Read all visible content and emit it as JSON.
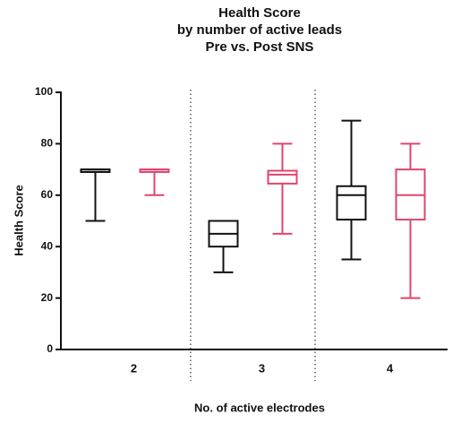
{
  "chart_data": {
    "type": "box",
    "title": [
      "Health Score",
      "by number of active leads",
      "Pre vs.  Post SNS"
    ],
    "y_label": "Health Score",
    "x_label": "No. of active electrodes",
    "categories": [
      "2",
      "3",
      "4"
    ],
    "ylim": [
      0,
      100
    ],
    "yticks": [
      0,
      20,
      40,
      60,
      80,
      100
    ],
    "series": [
      {
        "color": "#111111",
        "min": [
          50,
          30,
          35
        ],
        "q1": [
          69,
          40,
          50.5
        ],
        "median": [
          70,
          45,
          60
        ],
        "q3": [
          70,
          50,
          63.5
        ],
        "max": [
          70,
          50,
          89
        ]
      },
      {
        "color": "#e0456e",
        "min": [
          60,
          45,
          20
        ],
        "q1": [
          69,
          64.5,
          50.5
        ],
        "median": [
          70,
          68,
          60
        ],
        "q3": [
          70,
          69.5,
          70
        ],
        "max": [
          70,
          80,
          80
        ]
      }
    ]
  }
}
